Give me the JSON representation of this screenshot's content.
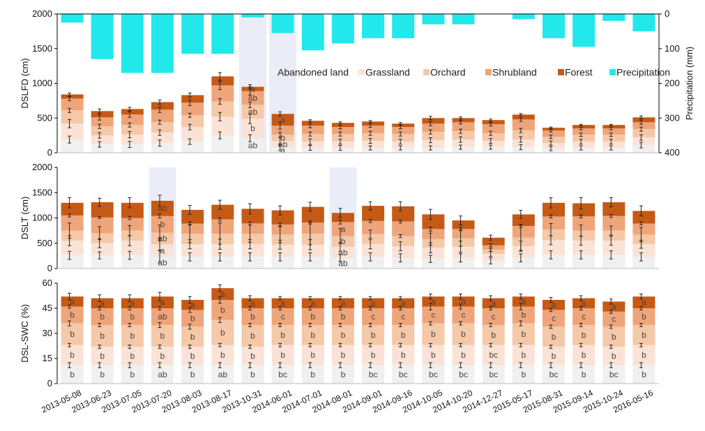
{
  "colors": {
    "Abandoned land": "#f0f0f0",
    "Grassland": "#fae3d6",
    "Orchard": "#f5c8a8",
    "Shrubland": "#efa57a",
    "Forest": "#c55a16",
    "Precipitation": "#22e8ec",
    "highlight": "#b9c3e8"
  },
  "legend": [
    "Abandoned land",
    "Grassland",
    "Orchard",
    "Shrubland",
    "Forest",
    "Precipitation"
  ],
  "chart_data": [
    {
      "type": "bar",
      "stacked": true,
      "ylabel": "DSLFD (cm)",
      "ylim": [
        0,
        2000
      ],
      "yticks": [
        0,
        500,
        1000,
        1500,
        2000
      ],
      "y2label": "Precipitation (mm)",
      "y2lim": [
        0,
        400
      ],
      "y2ticks": [
        0,
        100,
        200,
        300,
        400
      ],
      "y2_inverted": true,
      "highlight_indices": [
        6,
        7
      ],
      "categories": [
        "2013-05-08",
        "2013-06-23",
        "2013-07-05",
        "2013-07-20",
        "2013-08-03",
        "2013-08-17",
        "2013-10-31",
        "2014-06-01",
        "2014-07-01",
        "2014-08-01",
        "2014-09-01",
        "2014-09-16",
        "2014-10-05",
        "2014-10-20",
        "2014-12-27",
        "2015-05-17",
        "2015-08-31",
        "2015-09-14",
        "2015-10-24",
        "2016-05-16"
      ],
      "series": [
        {
          "name": "Abandoned land",
          "values": [
            190,
            120,
            120,
            140,
            160,
            250,
            210,
            70,
            70,
            70,
            70,
            70,
            70,
            80,
            80,
            80,
            60,
            70,
            70,
            110
          ]
        },
        {
          "name": "Grassland",
          "values": [
            230,
            130,
            140,
            150,
            210,
            270,
            280,
            100,
            90,
            90,
            100,
            90,
            110,
            110,
            90,
            110,
            80,
            90,
            90,
            110
          ]
        },
        {
          "name": "Orchard",
          "values": [
            190,
            130,
            140,
            150,
            170,
            220,
            200,
            90,
            110,
            110,
            110,
            110,
            120,
            120,
            110,
            130,
            90,
            100,
            100,
            120
          ]
        },
        {
          "name": "Shrubland",
          "values": [
            170,
            130,
            150,
            180,
            180,
            230,
            200,
            130,
            120,
            100,
            110,
            100,
            120,
            130,
            130,
            160,
            90,
            90,
            90,
            100
          ]
        },
        {
          "name": "Forest",
          "values": [
            60,
            90,
            80,
            110,
            110,
            130,
            60,
            170,
            70,
            60,
            60,
            50,
            80,
            60,
            60,
            70,
            40,
            50,
            50,
            70
          ]
        },
        {
          "name": "Precipitation",
          "values": [
            25,
            130,
            170,
            170,
            115,
            115,
            10,
            55,
            105,
            85,
            70,
            70,
            30,
            30,
            0,
            15,
            70,
            95,
            20,
            50
          ]
        }
      ],
      "errors": [
        [
          50,
          40,
          45,
          45,
          40,
          50,
          50,
          40,
          35,
          35,
          30,
          30,
          30,
          30,
          30,
          35,
          30,
          30,
          30,
          40
        ],
        [
          60,
          40,
          45,
          40,
          40,
          60,
          70,
          50,
          40,
          35,
          35,
          35,
          35,
          40,
          35,
          40,
          30,
          35,
          35,
          40
        ],
        [
          30,
          30,
          30,
          30,
          30,
          40,
          40,
          35,
          30,
          30,
          30,
          30,
          30,
          30,
          30,
          30,
          25,
          25,
          25,
          30
        ],
        [
          30,
          40,
          40,
          40,
          40,
          60,
          60,
          50,
          30,
          25,
          25,
          25,
          30,
          25,
          25,
          30,
          20,
          20,
          20,
          30
        ],
        [
          20,
          30,
          25,
          30,
          30,
          55,
          30,
          30,
          15,
          15,
          15,
          15,
          25,
          15,
          15,
          15,
          10,
          10,
          10,
          20
        ]
      ],
      "annotations": [
        {
          "index": 6,
          "letters": [
            "ab",
            "b",
            "ab",
            "ab",
            "a"
          ]
        },
        {
          "index": 7,
          "letters": [
            "a",
            "ab",
            "b",
            "",
            "a"
          ]
        }
      ]
    },
    {
      "type": "bar",
      "stacked": true,
      "ylabel": "DSLT (cm)",
      "ylim": [
        0,
        2000
      ],
      "yticks": [
        0,
        500,
        1000,
        1500,
        2000
      ],
      "highlight_indices": [
        3,
        9
      ],
      "series": [
        {
          "name": "Abandoned land",
          "values": [
            260,
            260,
            260,
            230,
            230,
            230,
            230,
            230,
            230,
            210,
            230,
            210,
            190,
            210,
            150,
            210,
            270,
            270,
            270,
            230
          ]
        },
        {
          "name": "Grassland",
          "values": [
            290,
            240,
            290,
            250,
            250,
            250,
            250,
            240,
            240,
            220,
            250,
            230,
            220,
            220,
            140,
            230,
            290,
            280,
            280,
            250
          ]
        },
        {
          "name": "Orchard",
          "values": [
            200,
            200,
            200,
            230,
            210,
            210,
            210,
            200,
            220,
            210,
            200,
            200,
            170,
            170,
            80,
            170,
            210,
            200,
            200,
            190
          ]
        },
        {
          "name": "Shrubland",
          "values": [
            300,
            310,
            250,
            330,
            200,
            280,
            200,
            200,
            220,
            280,
            260,
            290,
            200,
            180,
            90,
            230,
            260,
            280,
            290,
            220
          ]
        },
        {
          "name": "Forest",
          "values": [
            250,
            300,
            300,
            300,
            270,
            290,
            290,
            280,
            310,
            180,
            300,
            300,
            290,
            170,
            150,
            230,
            270,
            260,
            270,
            250
          ]
        }
      ],
      "errors": [
        [
          80,
          70,
          80,
          120,
          80,
          80,
          80,
          80,
          80,
          70,
          80,
          80,
          70,
          80,
          60,
          80,
          80,
          80,
          80,
          80
        ],
        [
          100,
          90,
          100,
          120,
          90,
          100,
          90,
          90,
          100,
          90,
          90,
          90,
          100,
          110,
          50,
          100,
          90,
          90,
          90,
          80
        ],
        [
          150,
          130,
          100,
          150,
          180,
          210,
          170,
          160,
          220,
          150,
          80,
          30,
          120,
          160,
          30,
          250,
          120,
          110,
          90,
          140
        ],
        [
          30,
          20,
          30,
          40,
          30,
          30,
          30,
          30,
          30,
          40,
          30,
          30,
          40,
          30,
          30,
          30,
          30,
          30,
          30,
          30
        ],
        [
          100,
          80,
          100,
          110,
          90,
          90,
          100,
          90,
          90,
          90,
          80,
          90,
          100,
          90,
          50,
          80,
          100,
          110,
          90,
          100
        ]
      ],
      "annotations": [
        {
          "index": 3,
          "letters": [
            "ab",
            "a",
            "ab",
            "b",
            "ab"
          ]
        },
        {
          "index": 9,
          "letters": [
            "ab",
            "ab",
            "b",
            "a",
            ""
          ]
        }
      ]
    },
    {
      "type": "bar",
      "stacked": true,
      "ylabel": "DSL-SWC (%)",
      "ylim": [
        0,
        60
      ],
      "yticks": [
        0,
        15,
        30,
        45,
        60
      ],
      "series": [
        {
          "name": "Abandoned land",
          "values": [
            11,
            11,
            11,
            11,
            11,
            11,
            11,
            11,
            11,
            11,
            11,
            11,
            11,
            11,
            11,
            11,
            11,
            11,
            11,
            11
          ]
        },
        {
          "name": "Grassland",
          "values": [
            12,
            11,
            11,
            11,
            11,
            12,
            11,
            12,
            12,
            12,
            12,
            12,
            12,
            12,
            12,
            12,
            11,
            12,
            11,
            12
          ]
        },
        {
          "name": "Orchard",
          "values": [
            13,
            13,
            13,
            13,
            12,
            15,
            13,
            12,
            12,
            12,
            12,
            12,
            13,
            13,
            12,
            13,
            12,
            12,
            12,
            12
          ]
        },
        {
          "name": "Shrubland",
          "values": [
            10,
            10,
            10,
            10,
            10,
            12,
            10,
            10,
            10,
            10,
            10,
            10,
            10,
            10,
            10,
            10,
            10,
            10,
            9,
            10
          ]
        },
        {
          "name": "Forest",
          "values": [
            6,
            6,
            6,
            7,
            6,
            7,
            6,
            6,
            6,
            6,
            6,
            6,
            6,
            6,
            6,
            6,
            6,
            6,
            6,
            7
          ]
        }
      ],
      "errors": [
        [
          1.5,
          1.5,
          1.5,
          1.5,
          1.5,
          1.5,
          1.5,
          1.5,
          1.5,
          1.5,
          1.5,
          1.5,
          1.5,
          1.5,
          1.5,
          1.5,
          1.5,
          1.5,
          1.5,
          1.5
        ],
        [
          1,
          1,
          1,
          1,
          1,
          1,
          1,
          1,
          1,
          1,
          1,
          1,
          1,
          1,
          1,
          1,
          1,
          1,
          1,
          1
        ],
        [
          1.5,
          1,
          1,
          1.5,
          1.5,
          1.5,
          1,
          1,
          1,
          1,
          1,
          1,
          1,
          1,
          1,
          1.5,
          1,
          1,
          1,
          1
        ],
        [
          1,
          1,
          1,
          1,
          1.5,
          2,
          1,
          1,
          1,
          1,
          1,
          1,
          2,
          1.5,
          1,
          2,
          1,
          1,
          1,
          1
        ],
        [
          2,
          2,
          2,
          2.5,
          2,
          2,
          1.5,
          1,
          1,
          1,
          1,
          1,
          1.5,
          1.5,
          1.5,
          1.5,
          1.5,
          1.5,
          1.5,
          1.5
        ]
      ],
      "annotations": [
        {
          "index": 0,
          "letters": [
            "b",
            "b",
            "b",
            "b",
            "a"
          ]
        },
        {
          "index": 1,
          "letters": [
            "b",
            "b",
            "b",
            "b",
            "a"
          ]
        },
        {
          "index": 2,
          "letters": [
            "b",
            "b",
            "b",
            "b",
            "a"
          ]
        },
        {
          "index": 3,
          "letters": [
            "ab",
            "b",
            "b",
            "ab",
            "a"
          ]
        },
        {
          "index": 4,
          "letters": [
            "b",
            "b",
            "b",
            "b",
            "a"
          ]
        },
        {
          "index": 5,
          "letters": [
            "ab",
            "b",
            "b",
            "b",
            "a"
          ]
        },
        {
          "index": 6,
          "letters": [
            "b",
            "b",
            "b",
            "b",
            "a"
          ]
        },
        {
          "index": 7,
          "letters": [
            "bc",
            "b",
            "b",
            "c",
            "a"
          ]
        },
        {
          "index": 8,
          "letters": [
            "b",
            "b",
            "b",
            "b",
            "a"
          ]
        },
        {
          "index": 9,
          "letters": [
            "b",
            "b",
            "b",
            "b",
            "a"
          ]
        },
        {
          "index": 10,
          "letters": [
            "bc",
            "b",
            "b",
            "c",
            "a"
          ]
        },
        {
          "index": 11,
          "letters": [
            "bc",
            "b",
            "b",
            "c",
            "a"
          ]
        },
        {
          "index": 12,
          "letters": [
            "bc",
            "b",
            "b",
            "c",
            "a"
          ]
        },
        {
          "index": 13,
          "letters": [
            "bc",
            "b",
            "b",
            "c",
            "a"
          ]
        },
        {
          "index": 14,
          "letters": [
            "bc",
            "bc",
            "b",
            "c",
            "a"
          ]
        },
        {
          "index": 15,
          "letters": [
            "b",
            "b",
            "b",
            "b",
            "a"
          ]
        },
        {
          "index": 16,
          "letters": [
            "bc",
            "b",
            "b",
            "c",
            "a"
          ]
        },
        {
          "index": 17,
          "letters": [
            "b",
            "b",
            "b",
            "c",
            "a"
          ]
        },
        {
          "index": 18,
          "letters": [
            "bc",
            "b",
            "b",
            "c",
            "a"
          ]
        },
        {
          "index": 19,
          "letters": [
            "b",
            "b",
            "b",
            "b",
            "a"
          ]
        }
      ]
    }
  ]
}
